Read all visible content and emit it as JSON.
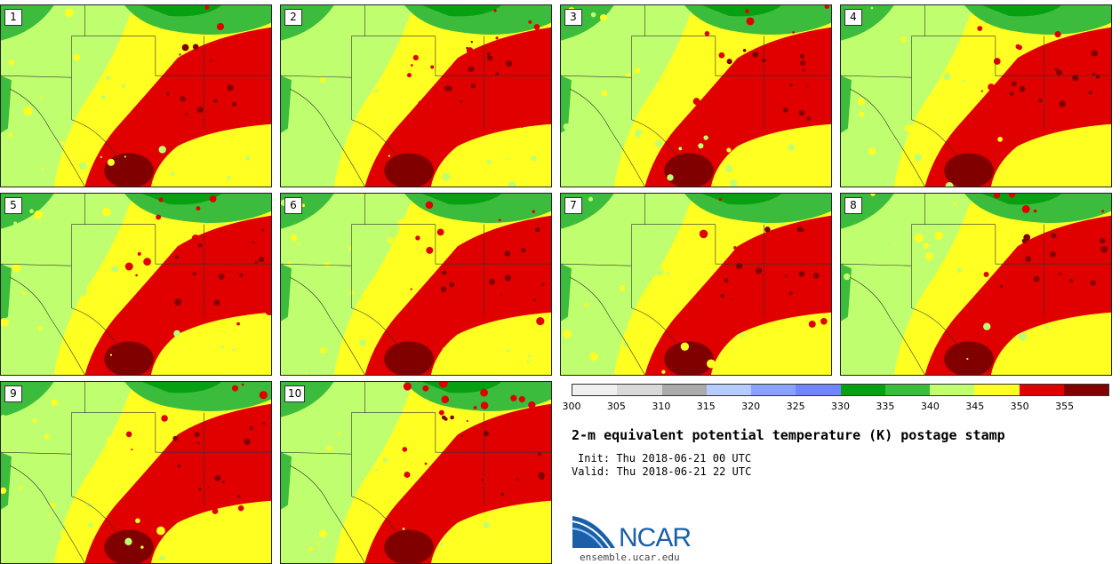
{
  "stamps": [
    {
      "label": "1",
      "seed": 11
    },
    {
      "label": "2",
      "seed": 23
    },
    {
      "label": "3",
      "seed": 37
    },
    {
      "label": "4",
      "seed": 41
    },
    {
      "label": "5",
      "seed": 53
    },
    {
      "label": "6",
      "seed": 67
    },
    {
      "label": "7",
      "seed": 71
    },
    {
      "label": "8",
      "seed": 83
    },
    {
      "label": "9",
      "seed": 97
    },
    {
      "label": "10",
      "seed": 101
    }
  ],
  "colorbar": {
    "colors": [
      "#f0f0f0",
      "#d9d9d9",
      "#aaaaaa",
      "#b4ccff",
      "#8aa2ff",
      "#6f86ff",
      "#06a012",
      "#3cbc3c",
      "#bfff6f",
      "#ffff22",
      "#e00000",
      "#800000"
    ],
    "tick_labels": [
      "300",
      "305",
      "310",
      "315",
      "320",
      "325",
      "330",
      "335",
      "340",
      "345",
      "350",
      "355"
    ]
  },
  "title": "2-m equivalent potential temperature (K) postage stamp",
  "init": "Init: Thu 2018-06-21 00 UTC",
  "valid": "Valid: Thu 2018-06-21 22 UTC",
  "logo": {
    "text": "NCAR",
    "url": "ensemble.ucar.edu",
    "color": "#1a5fa8"
  }
}
